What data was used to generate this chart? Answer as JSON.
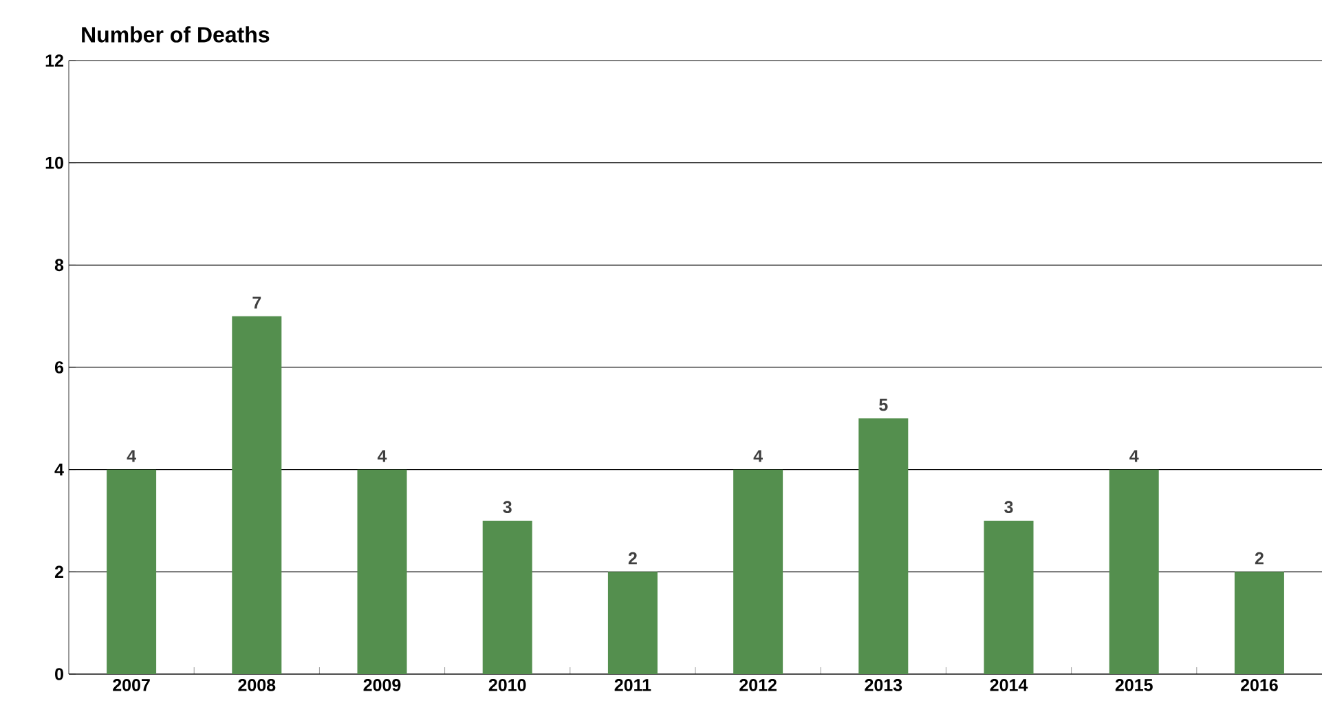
{
  "chart_data": {
    "type": "bar",
    "title": "Number of Deaths",
    "categories": [
      "2007",
      "2008",
      "2009",
      "2010",
      "2011",
      "2012",
      "2013",
      "2014",
      "2015",
      "2016"
    ],
    "values": [
      4,
      7,
      4,
      3,
      2,
      4,
      5,
      3,
      4,
      2
    ],
    "color": "#548f4e",
    "ylim": [
      0,
      12
    ],
    "yticks": [
      0,
      2,
      4,
      6,
      8,
      10,
      12
    ],
    "grid": "y",
    "data_labels": true
  }
}
